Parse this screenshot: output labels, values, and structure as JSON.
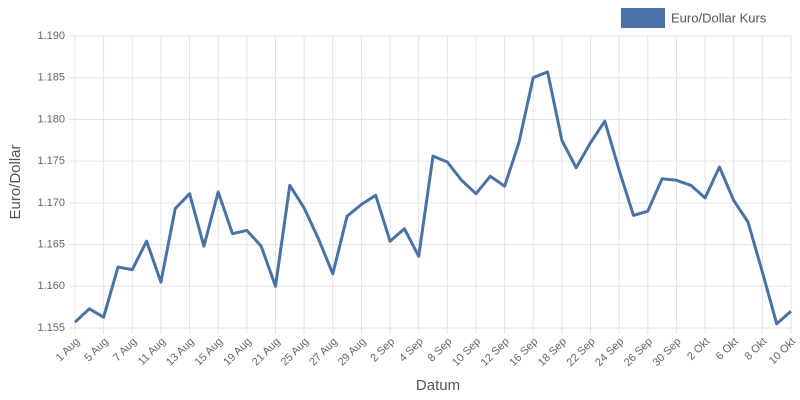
{
  "chart_data": {
    "type": "line",
    "x_label": "Datum",
    "y_label": "Euro/Dollar",
    "categories": [
      "1 Aug",
      null,
      "5 Aug",
      null,
      "7 Aug",
      null,
      "11 Aug",
      null,
      "13 Aug",
      null,
      "15 Aug",
      null,
      "19 Aug",
      null,
      "21 Aug",
      null,
      "25 Aug",
      null,
      "27 Aug",
      null,
      "29 Aug",
      null,
      "2 Sep",
      null,
      "4 Sep",
      null,
      "8 Sep",
      null,
      "10 Sep",
      null,
      "12 Sep",
      null,
      "16 Sep",
      null,
      "18 Sep",
      null,
      "22 Sep",
      null,
      "24 Sep",
      null,
      "26 Sep",
      null,
      "30 Sep",
      null,
      "2 Okt",
      null,
      "6 Okt",
      null,
      "8 Okt",
      null,
      "10 Okt"
    ],
    "series": [
      {
        "name": "Euro/Dollar Kurs",
        "color": "#4a72a5",
        "values": [
          1.1557,
          1.1573,
          1.1563,
          1.1623,
          1.162,
          1.1654,
          1.1605,
          1.1693,
          1.1711,
          1.1648,
          1.1713,
          1.1663,
          1.1667,
          1.1648,
          1.16,
          1.1721,
          1.1694,
          1.1657,
          1.1615,
          1.1684,
          1.1698,
          1.1709,
          1.1654,
          1.1669,
          1.1636,
          1.1756,
          1.1749,
          1.1727,
          1.1711,
          1.1732,
          1.172,
          1.1772,
          1.185,
          1.1857,
          1.1775,
          1.1742,
          1.1772,
          1.1798,
          1.1739,
          1.1685,
          1.169,
          1.1729,
          1.1727,
          1.1721,
          1.1706,
          1.1743,
          1.1703,
          1.1677,
          1.1617,
          1.1555,
          1.157
        ]
      }
    ],
    "ylim": [
      1.155,
      1.19
    ],
    "yticks": [
      1.155,
      {
        "value": 1.16,
        "label": "1.160"
      },
      1.165,
      {
        "value": 1.17,
        "label": "1.170"
      },
      1.175,
      {
        "value": 1.18,
        "label": "1.180"
      },
      1.185,
      {
        "value": 1.19,
        "label": "1.190"
      }
    ],
    "grid": true,
    "legend": "top-right"
  }
}
